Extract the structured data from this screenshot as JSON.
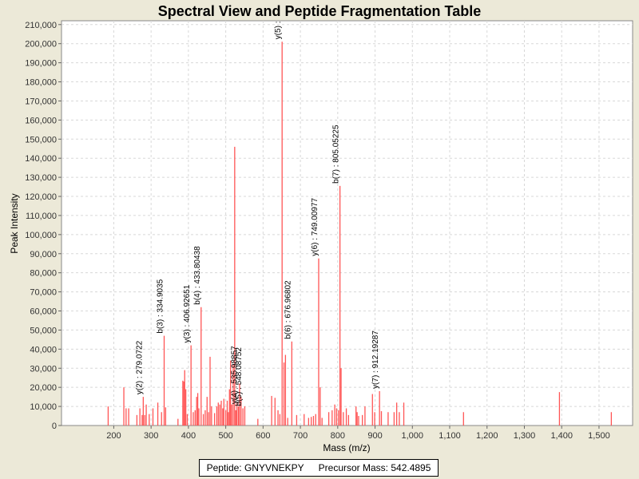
{
  "chart_data": {
    "type": "bar",
    "title": "Spectral View and Peptide Fragmentation Table",
    "xlabel": "Mass (m/z)",
    "ylabel": "Peak Intensity",
    "xlim": [
      60,
      1590
    ],
    "ylim": [
      0,
      212000
    ],
    "x_ticks": [
      200,
      300,
      400,
      500,
      600,
      700,
      800,
      900,
      1000,
      1100,
      1200,
      1300,
      1400,
      1500
    ],
    "x_tick_labels": [
      "200",
      "300",
      "400",
      "500",
      "600",
      "700",
      "800",
      "900",
      "1,000",
      "1,100",
      "1,200",
      "1,300",
      "1,400",
      "1,500"
    ],
    "y_ticks": [
      0,
      10000,
      20000,
      30000,
      40000,
      50000,
      60000,
      70000,
      80000,
      90000,
      100000,
      110000,
      120000,
      130000,
      140000,
      150000,
      160000,
      170000,
      180000,
      190000,
      200000,
      210000
    ],
    "y_tick_labels": [
      "0",
      "10,000",
      "20,000",
      "30,000",
      "40,000",
      "50,000",
      "60,000",
      "70,000",
      "80,000",
      "90,000",
      "100,000",
      "110,000",
      "120,000",
      "130,000",
      "140,000",
      "150,000",
      "160,000",
      "170,000",
      "180,000",
      "190,000",
      "200,000",
      "210,000"
    ],
    "grid": true,
    "series": [
      {
        "name": "Peak Intensity",
        "color": "#FF5555",
        "peaks": [
          [
            185,
            10000
          ],
          [
            227,
            20000
          ],
          [
            233,
            9000
          ],
          [
            240,
            9000
          ],
          [
            262,
            5500
          ],
          [
            270,
            9000
          ],
          [
            276,
            5500
          ],
          [
            279,
            15000
          ],
          [
            283,
            5500
          ],
          [
            287,
            11000
          ],
          [
            295,
            6000
          ],
          [
            305,
            9000
          ],
          [
            318,
            12000
          ],
          [
            328,
            7000
          ],
          [
            335,
            47000
          ],
          [
            339,
            9500
          ],
          [
            372,
            3500
          ],
          [
            385,
            23500
          ],
          [
            388,
            23000
          ],
          [
            390,
            29000
          ],
          [
            393,
            19000
          ],
          [
            397,
            6000
          ],
          [
            407,
            42000
          ],
          [
            413,
            7000
          ],
          [
            418,
            8000
          ],
          [
            422,
            15000
          ],
          [
            425,
            17000
          ],
          [
            428,
            9000
          ],
          [
            434,
            62000
          ],
          [
            440,
            6000
          ],
          [
            445,
            8000
          ],
          [
            450,
            15000
          ],
          [
            454,
            7000
          ],
          [
            458,
            36000
          ],
          [
            462,
            10000
          ],
          [
            470,
            6500
          ],
          [
            476,
            10000
          ],
          [
            480,
            12000
          ],
          [
            484,
            11000
          ],
          [
            488,
            13000
          ],
          [
            492,
            9000
          ],
          [
            495,
            14000
          ],
          [
            500,
            8000
          ],
          [
            504,
            13000
          ],
          [
            507,
            7000
          ],
          [
            510,
            19000
          ],
          [
            513,
            34000
          ],
          [
            516,
            11000
          ],
          [
            520,
            32000
          ],
          [
            524,
            146000
          ],
          [
            527,
            8000
          ],
          [
            530,
            12000
          ],
          [
            534,
            10000
          ],
          [
            537,
            22000
          ],
          [
            541,
            15000
          ],
          [
            546,
            9000
          ],
          [
            551,
            10000
          ],
          [
            586,
            3500
          ],
          [
            623,
            15500
          ],
          [
            632,
            14500
          ],
          [
            640,
            8000
          ],
          [
            645,
            6000
          ],
          [
            651,
            201000
          ],
          [
            656,
            33000
          ],
          [
            660,
            37000
          ],
          [
            666,
            4000
          ],
          [
            677,
            44000
          ],
          [
            690,
            5500
          ],
          [
            710,
            6000
          ],
          [
            722,
            4000
          ],
          [
            729,
            4500
          ],
          [
            735,
            5000
          ],
          [
            741,
            6000
          ],
          [
            749,
            87500
          ],
          [
            753,
            20000
          ],
          [
            758,
            4000
          ],
          [
            776,
            7000
          ],
          [
            785,
            8000
          ],
          [
            792,
            11000
          ],
          [
            797,
            9000
          ],
          [
            802,
            8000
          ],
          [
            806,
            125500
          ],
          [
            809,
            30000
          ],
          [
            815,
            7000
          ],
          [
            823,
            9000
          ],
          [
            829,
            5500
          ],
          [
            849,
            10000
          ],
          [
            852,
            7000
          ],
          [
            856,
            5000
          ],
          [
            866,
            5500
          ],
          [
            873,
            10000
          ],
          [
            893,
            16500
          ],
          [
            899,
            7000
          ],
          [
            912,
            18000
          ],
          [
            917,
            7500
          ],
          [
            935,
            7000
          ],
          [
            951,
            7000
          ],
          [
            958,
            12000
          ],
          [
            965,
            7000
          ],
          [
            977,
            12000
          ],
          [
            1137,
            7000
          ],
          [
            1394,
            17500
          ],
          [
            1533,
            7000
          ]
        ]
      }
    ],
    "annotations": [
      {
        "label": "y(2) : 279.0722",
        "x": 279,
        "y": 15000
      },
      {
        "label": "b(3) : 334.9035",
        "x": 335,
        "y": 47000
      },
      {
        "label": "y(3) : 406.92651",
        "x": 407,
        "y": 42000
      },
      {
        "label": "b(4) : 433.80438",
        "x": 434,
        "y": 62000
      },
      {
        "label": "y(4) : 535.98857",
        "x": 534,
        "y": 10000
      },
      {
        "label": "b(5) : 548.08752",
        "x": 546,
        "y": 9000
      },
      {
        "label": "y(5) :",
        "x": 651,
        "y": 201000
      },
      {
        "label": "b(6) : 676.96802",
        "x": 677,
        "y": 44000
      },
      {
        "label": "y(6) : 749.00977",
        "x": 749,
        "y": 87500
      },
      {
        "label": "b(7) : 805.05225",
        "x": 806,
        "y": 125500
      },
      {
        "label": "y(7) : 912.19287",
        "x": 912,
        "y": 18000
      }
    ]
  },
  "legend": {
    "peptide": "Peptide: GNYVNEKPY",
    "precursor": "Precursor Mass: 542.4895"
  }
}
